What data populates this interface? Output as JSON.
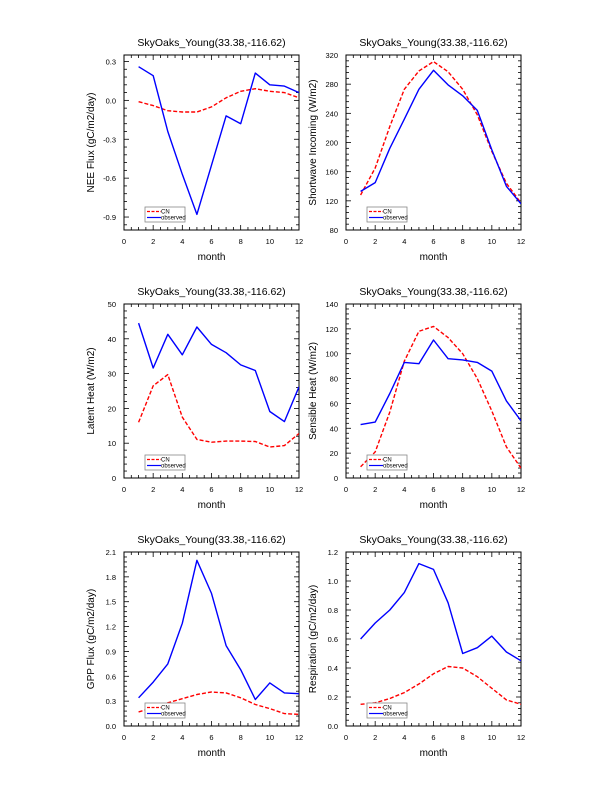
{
  "chart_data": [
    {
      "type": "line",
      "title": "SkyOaks_Young(33.38,-116.62)",
      "xlabel": "month",
      "ylabel": "NEE Flux (gC/m2/day)",
      "xlim": [
        0,
        12
      ],
      "ylim": [
        -1.0,
        0.35
      ],
      "xticks": [
        0,
        2,
        4,
        6,
        8,
        10,
        12
      ],
      "yticks": [
        -0.9,
        -0.6,
        -0.3,
        0.0,
        0.3
      ],
      "ytick_labels": [
        "-0.9",
        "-0.6",
        "-0.3",
        "0.0",
        "0.3"
      ],
      "x": [
        1,
        2,
        3,
        4,
        5,
        6,
        7,
        8,
        9,
        10,
        11,
        12
      ],
      "series": [
        {
          "name": "CN",
          "color": "#ff0000",
          "style": "dashed",
          "values": [
            -0.01,
            -0.04,
            -0.08,
            -0.09,
            -0.09,
            -0.05,
            0.02,
            0.07,
            0.09,
            0.07,
            0.06,
            0.02
          ]
        },
        {
          "name": "observed",
          "color": "#0000ff",
          "style": "solid",
          "values": [
            0.26,
            0.19,
            -0.24,
            -0.57,
            -0.88,
            -0.5,
            -0.12,
            -0.18,
            0.21,
            0.12,
            0.11,
            0.06
          ]
        }
      ],
      "legend": "bottom-left"
    },
    {
      "type": "line",
      "title": "SkyOaks_Young(33.38,-116.62)",
      "xlabel": "month",
      "ylabel": "Shortwave Incoming (W/m2)",
      "xlim": [
        0,
        12
      ],
      "ylim": [
        80,
        320
      ],
      "xticks": [
        0,
        2,
        4,
        6,
        8,
        10,
        12
      ],
      "yticks": [
        80,
        120,
        160,
        200,
        240,
        280,
        320
      ],
      "ytick_labels": [
        "80",
        "120",
        "160",
        "200",
        "240",
        "280",
        "320"
      ],
      "x": [
        1,
        2,
        3,
        4,
        5,
        6,
        7,
        8,
        9,
        10,
        11,
        12
      ],
      "series": [
        {
          "name": "CN",
          "color": "#ff0000",
          "style": "dashed",
          "values": [
            128,
            165,
            222,
            273,
            298,
            311,
            297,
            273,
            238,
            188,
            144,
            117
          ]
        },
        {
          "name": "observed",
          "color": "#0000ff",
          "style": "solid",
          "values": [
            133,
            145,
            192,
            232,
            273,
            299,
            279,
            264,
            244,
            190,
            140,
            116
          ]
        }
      ],
      "legend": "bottom-left"
    },
    {
      "type": "line",
      "title": "SkyOaks_Young(33.38,-116.62)",
      "xlabel": "month",
      "ylabel": "Latent Heat (W/m2)",
      "xlim": [
        0,
        12
      ],
      "ylim": [
        0,
        50
      ],
      "xticks": [
        0,
        2,
        4,
        6,
        8,
        10,
        12
      ],
      "yticks": [
        0,
        10,
        20,
        30,
        40,
        50
      ],
      "ytick_labels": [
        "0",
        "10",
        "20",
        "30",
        "40",
        "50"
      ],
      "x": [
        1,
        2,
        3,
        4,
        5,
        6,
        7,
        8,
        9,
        10,
        11,
        12
      ],
      "series": [
        {
          "name": "CN",
          "color": "#ff0000",
          "style": "dashed",
          "values": [
            16.0,
            26.5,
            29.7,
            17.5,
            11.1,
            10.3,
            10.6,
            10.6,
            10.5,
            8.9,
            9.3,
            12.8
          ]
        },
        {
          "name": "observed",
          "color": "#0000ff",
          "style": "solid",
          "values": [
            44.5,
            31.6,
            41.3,
            35.4,
            43.4,
            38.4,
            36.0,
            32.5,
            30.9,
            19.1,
            16.2,
            26.2
          ]
        }
      ],
      "legend": "bottom-left"
    },
    {
      "type": "line",
      "title": "SkyOaks_Young(33.38,-116.62)",
      "xlabel": "month",
      "ylabel": "Sensible Heat (W/m2)",
      "xlim": [
        0,
        12
      ],
      "ylim": [
        0,
        140
      ],
      "xticks": [
        0,
        2,
        4,
        6,
        8,
        10,
        12
      ],
      "yticks": [
        0,
        20,
        40,
        60,
        80,
        100,
        120,
        140
      ],
      "ytick_labels": [
        "0",
        "20",
        "40",
        "60",
        "80",
        "100",
        "120",
        "140"
      ],
      "x": [
        1,
        2,
        3,
        4,
        5,
        6,
        7,
        8,
        9,
        10,
        11,
        12
      ],
      "series": [
        {
          "name": "CN",
          "color": "#ff0000",
          "style": "dashed",
          "values": [
            9,
            21,
            53,
            94,
            118,
            122,
            113,
            100,
            80,
            54,
            25,
            8
          ]
        },
        {
          "name": "observed",
          "color": "#0000ff",
          "style": "solid",
          "values": [
            43,
            45,
            68,
            93,
            92,
            111,
            96,
            95,
            93,
            86,
            62,
            46
          ]
        }
      ],
      "legend": "bottom-left"
    },
    {
      "type": "line",
      "title": "SkyOaks_Young(33.38,-116.62)",
      "xlabel": "month",
      "ylabel": "GPP Flux (gC/m2/day)",
      "xlim": [
        0,
        12
      ],
      "ylim": [
        0,
        2.1
      ],
      "xticks": [
        0,
        2,
        4,
        6,
        8,
        10,
        12
      ],
      "yticks": [
        0,
        0.3,
        0.6,
        0.9,
        1.2,
        1.5,
        1.8,
        2.1
      ],
      "ytick_labels": [
        "0.0",
        "0.3",
        "0.6",
        "0.9",
        "1.2",
        "1.5",
        "1.8",
        "2.1"
      ],
      "x": [
        1,
        2,
        3,
        4,
        5,
        6,
        7,
        8,
        9,
        10,
        11,
        12
      ],
      "series": [
        {
          "name": "CN",
          "color": "#ff0000",
          "style": "dashed",
          "values": [
            0.17,
            0.22,
            0.28,
            0.33,
            0.38,
            0.41,
            0.4,
            0.34,
            0.26,
            0.21,
            0.15,
            0.14
          ]
        },
        {
          "name": "observed",
          "color": "#0000ff",
          "style": "solid",
          "values": [
            0.34,
            0.53,
            0.75,
            1.24,
            2.0,
            1.6,
            0.97,
            0.68,
            0.32,
            0.52,
            0.4,
            0.39
          ]
        }
      ],
      "legend": "bottom-left"
    },
    {
      "type": "line",
      "title": "SkyOaks_Young(33.38,-116.62)",
      "xlabel": "month",
      "ylabel": "Respiration (gC/m2/day)",
      "xlim": [
        0,
        12
      ],
      "ylim": [
        0,
        1.2
      ],
      "xticks": [
        0,
        2,
        4,
        6,
        8,
        10,
        12
      ],
      "yticks": [
        0,
        0.2,
        0.4,
        0.6,
        0.8,
        1.0,
        1.2
      ],
      "ytick_labels": [
        "0.0",
        "0.2",
        "0.4",
        "0.6",
        "0.8",
        "1.0",
        "1.2"
      ],
      "x": [
        1,
        2,
        3,
        4,
        5,
        6,
        7,
        8,
        9,
        10,
        11,
        12
      ],
      "series": [
        {
          "name": "CN",
          "color": "#ff0000",
          "style": "dashed",
          "values": [
            0.15,
            0.16,
            0.19,
            0.23,
            0.29,
            0.36,
            0.41,
            0.4,
            0.34,
            0.26,
            0.18,
            0.15
          ]
        },
        {
          "name": "observed",
          "color": "#0000ff",
          "style": "solid",
          "values": [
            0.6,
            0.71,
            0.8,
            0.92,
            1.12,
            1.08,
            0.85,
            0.5,
            0.54,
            0.62,
            0.51,
            0.45
          ]
        }
      ],
      "legend": "bottom-left"
    }
  ]
}
